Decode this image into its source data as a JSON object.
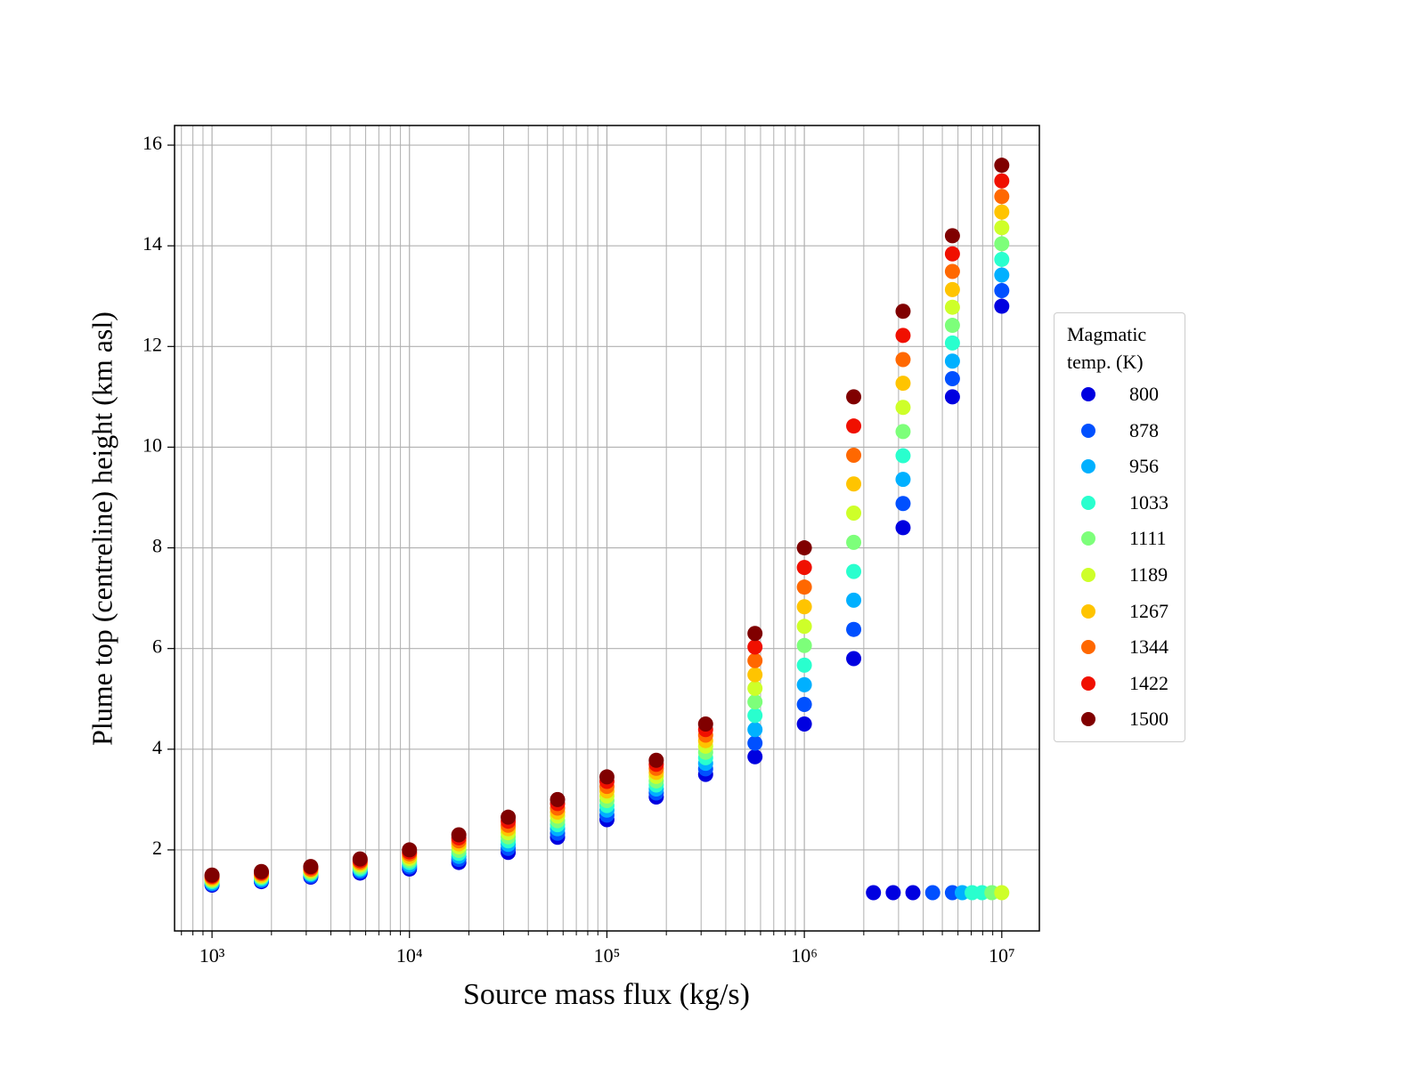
{
  "chart_data": {
    "type": "scatter",
    "xlabel": "Source mass flux (kg/s)",
    "ylabel": "Plume top (centreline) height (km asl)",
    "legend_title": "Magmatic temp. (K)",
    "legend": "outside-right",
    "xscale": "log",
    "grid": true,
    "xlim": [
      646,
      15500000
    ],
    "ylim": [
      0.39,
      16.39
    ],
    "xticks": [
      {
        "value": 1000,
        "label": "10³"
      },
      {
        "value": 10000,
        "label": "10⁴"
      },
      {
        "value": 100000,
        "label": "10⁵"
      },
      {
        "value": 1000000,
        "label": "10⁶"
      },
      {
        "value": 10000000,
        "label": "10⁷"
      }
    ],
    "xminorticks": [
      700,
      800,
      900,
      2000,
      3000,
      4000,
      5000,
      6000,
      7000,
      8000,
      9000,
      20000,
      30000,
      40000,
      50000,
      60000,
      70000,
      80000,
      90000,
      200000,
      300000,
      400000,
      500000,
      600000,
      700000,
      800000,
      900000,
      2000000,
      3000000,
      4000000,
      5000000,
      6000000,
      7000000,
      8000000,
      9000000
    ],
    "yticks": [
      2,
      4,
      6,
      8,
      10,
      12,
      14,
      16
    ],
    "series": [
      {
        "name": "800",
        "color": "#0000e0",
        "x": [
          1000,
          1778,
          3162,
          5623,
          10000,
          17783,
          31623,
          56234,
          100000,
          177828,
          316228,
          562341,
          1000000,
          1778279,
          3162278,
          5623413,
          10000000,
          2238721,
          2818383,
          3548134
        ],
        "values": [
          1.3,
          1.37,
          1.46,
          1.54,
          1.62,
          1.75,
          1.95,
          2.25,
          2.6,
          3.05,
          3.5,
          3.85,
          4.5,
          5.8,
          8.4,
          11.0,
          12.8,
          1.15,
          1.15,
          1.15
        ]
      },
      {
        "name": "878",
        "color": "#0050ff",
        "x": [
          1000,
          1778,
          3162,
          5623,
          10000,
          17783,
          31623,
          56234,
          100000,
          177828,
          316228,
          562341,
          1000000,
          1778279,
          3162278,
          5623413,
          10000000,
          4466836,
          5623413
        ],
        "values": [
          1.32,
          1.39,
          1.48,
          1.57,
          1.66,
          1.81,
          2.03,
          2.33,
          2.69,
          3.13,
          3.61,
          4.12,
          4.89,
          6.38,
          8.88,
          11.36,
          13.11,
          1.15,
          1.15
        ]
      },
      {
        "name": "956",
        "color": "#00b0ff",
        "x": [
          1000,
          1778,
          3162,
          5623,
          10000,
          17783,
          31623,
          56234,
          100000,
          177828,
          316228,
          562341,
          1000000,
          1778279,
          3162278,
          5623413,
          10000000,
          6309573
        ],
        "values": [
          1.34,
          1.41,
          1.51,
          1.6,
          1.7,
          1.87,
          2.11,
          2.42,
          2.79,
          3.21,
          3.72,
          4.39,
          5.28,
          6.96,
          9.36,
          11.71,
          13.42,
          1.15
        ]
      },
      {
        "name": "1033",
        "color": "#29ffce",
        "x": [
          1000,
          1778,
          3162,
          5623,
          10000,
          17783,
          31623,
          56234,
          100000,
          177828,
          316228,
          562341,
          1000000,
          1778279,
          3162278,
          5623413,
          10000000,
          7079458,
          7943282
        ],
        "values": [
          1.37,
          1.44,
          1.53,
          1.63,
          1.75,
          1.93,
          2.18,
          2.5,
          2.88,
          3.29,
          3.83,
          4.67,
          5.67,
          7.53,
          9.83,
          12.07,
          13.73,
          1.15,
          1.15
        ]
      },
      {
        "name": "1111",
        "color": "#7dff7a",
        "x": [
          1000,
          1778,
          3162,
          5623,
          10000,
          17783,
          31623,
          56234,
          100000,
          177828,
          316228,
          562341,
          1000000,
          1778279,
          3162278,
          5623413,
          10000000,
          8912509
        ],
        "values": [
          1.39,
          1.46,
          1.55,
          1.66,
          1.79,
          1.99,
          2.26,
          2.58,
          2.98,
          3.37,
          3.94,
          4.94,
          6.06,
          8.11,
          10.31,
          12.42,
          14.04,
          1.15
        ]
      },
      {
        "name": "1189",
        "color": "#ceff29",
        "x": [
          1000,
          1778,
          3162,
          5623,
          10000,
          17783,
          31623,
          56234,
          100000,
          177828,
          316228,
          562341,
          1000000,
          1778279,
          3162278,
          5623413,
          10000000,
          10000000
        ],
        "values": [
          1.41,
          1.48,
          1.58,
          1.7,
          1.83,
          2.06,
          2.34,
          2.67,
          3.07,
          3.46,
          4.06,
          5.21,
          6.44,
          8.69,
          10.79,
          12.78,
          14.36,
          1.15
        ]
      },
      {
        "name": "1267",
        "color": "#ffc400",
        "x": [
          1000,
          1778,
          3162,
          5623,
          10000,
          17783,
          31623,
          56234,
          100000,
          177828,
          316228,
          562341,
          1000000,
          1778279,
          3162278,
          5623413,
          10000000
        ],
        "values": [
          1.43,
          1.5,
          1.6,
          1.73,
          1.87,
          2.12,
          2.42,
          2.75,
          3.17,
          3.54,
          4.17,
          5.48,
          6.83,
          9.27,
          11.27,
          13.13,
          14.67
        ]
      },
      {
        "name": "1344",
        "color": "#ff6800",
        "x": [
          1000,
          1778,
          3162,
          5623,
          10000,
          17783,
          31623,
          56234,
          100000,
          177828,
          316228,
          562341,
          1000000,
          1778279,
          3162278,
          5623413,
          10000000
        ],
        "values": [
          1.46,
          1.53,
          1.62,
          1.76,
          1.92,
          2.18,
          2.49,
          2.83,
          3.26,
          3.62,
          4.28,
          5.76,
          7.22,
          9.84,
          11.74,
          13.49,
          14.98
        ]
      },
      {
        "name": "1422",
        "color": "#f01000",
        "x": [
          1000,
          1778,
          3162,
          5623,
          10000,
          17783,
          31623,
          56234,
          100000,
          177828,
          316228,
          562341,
          1000000,
          1778279,
          3162278,
          5623413,
          10000000
        ],
        "values": [
          1.48,
          1.55,
          1.65,
          1.79,
          1.96,
          2.24,
          2.57,
          2.92,
          3.36,
          3.7,
          4.39,
          6.03,
          7.61,
          10.42,
          12.22,
          13.84,
          15.29
        ]
      },
      {
        "name": "1500",
        "color": "#800000",
        "x": [
          1000,
          1778,
          3162,
          5623,
          10000,
          17783,
          31623,
          56234,
          100000,
          177828,
          316228,
          562341,
          1000000,
          1778279,
          3162278,
          5623413,
          10000000
        ],
        "values": [
          1.5,
          1.57,
          1.67,
          1.82,
          2.0,
          2.3,
          2.65,
          3.0,
          3.45,
          3.78,
          4.5,
          6.3,
          8.0,
          11.0,
          12.7,
          14.2,
          15.6
        ]
      }
    ]
  }
}
